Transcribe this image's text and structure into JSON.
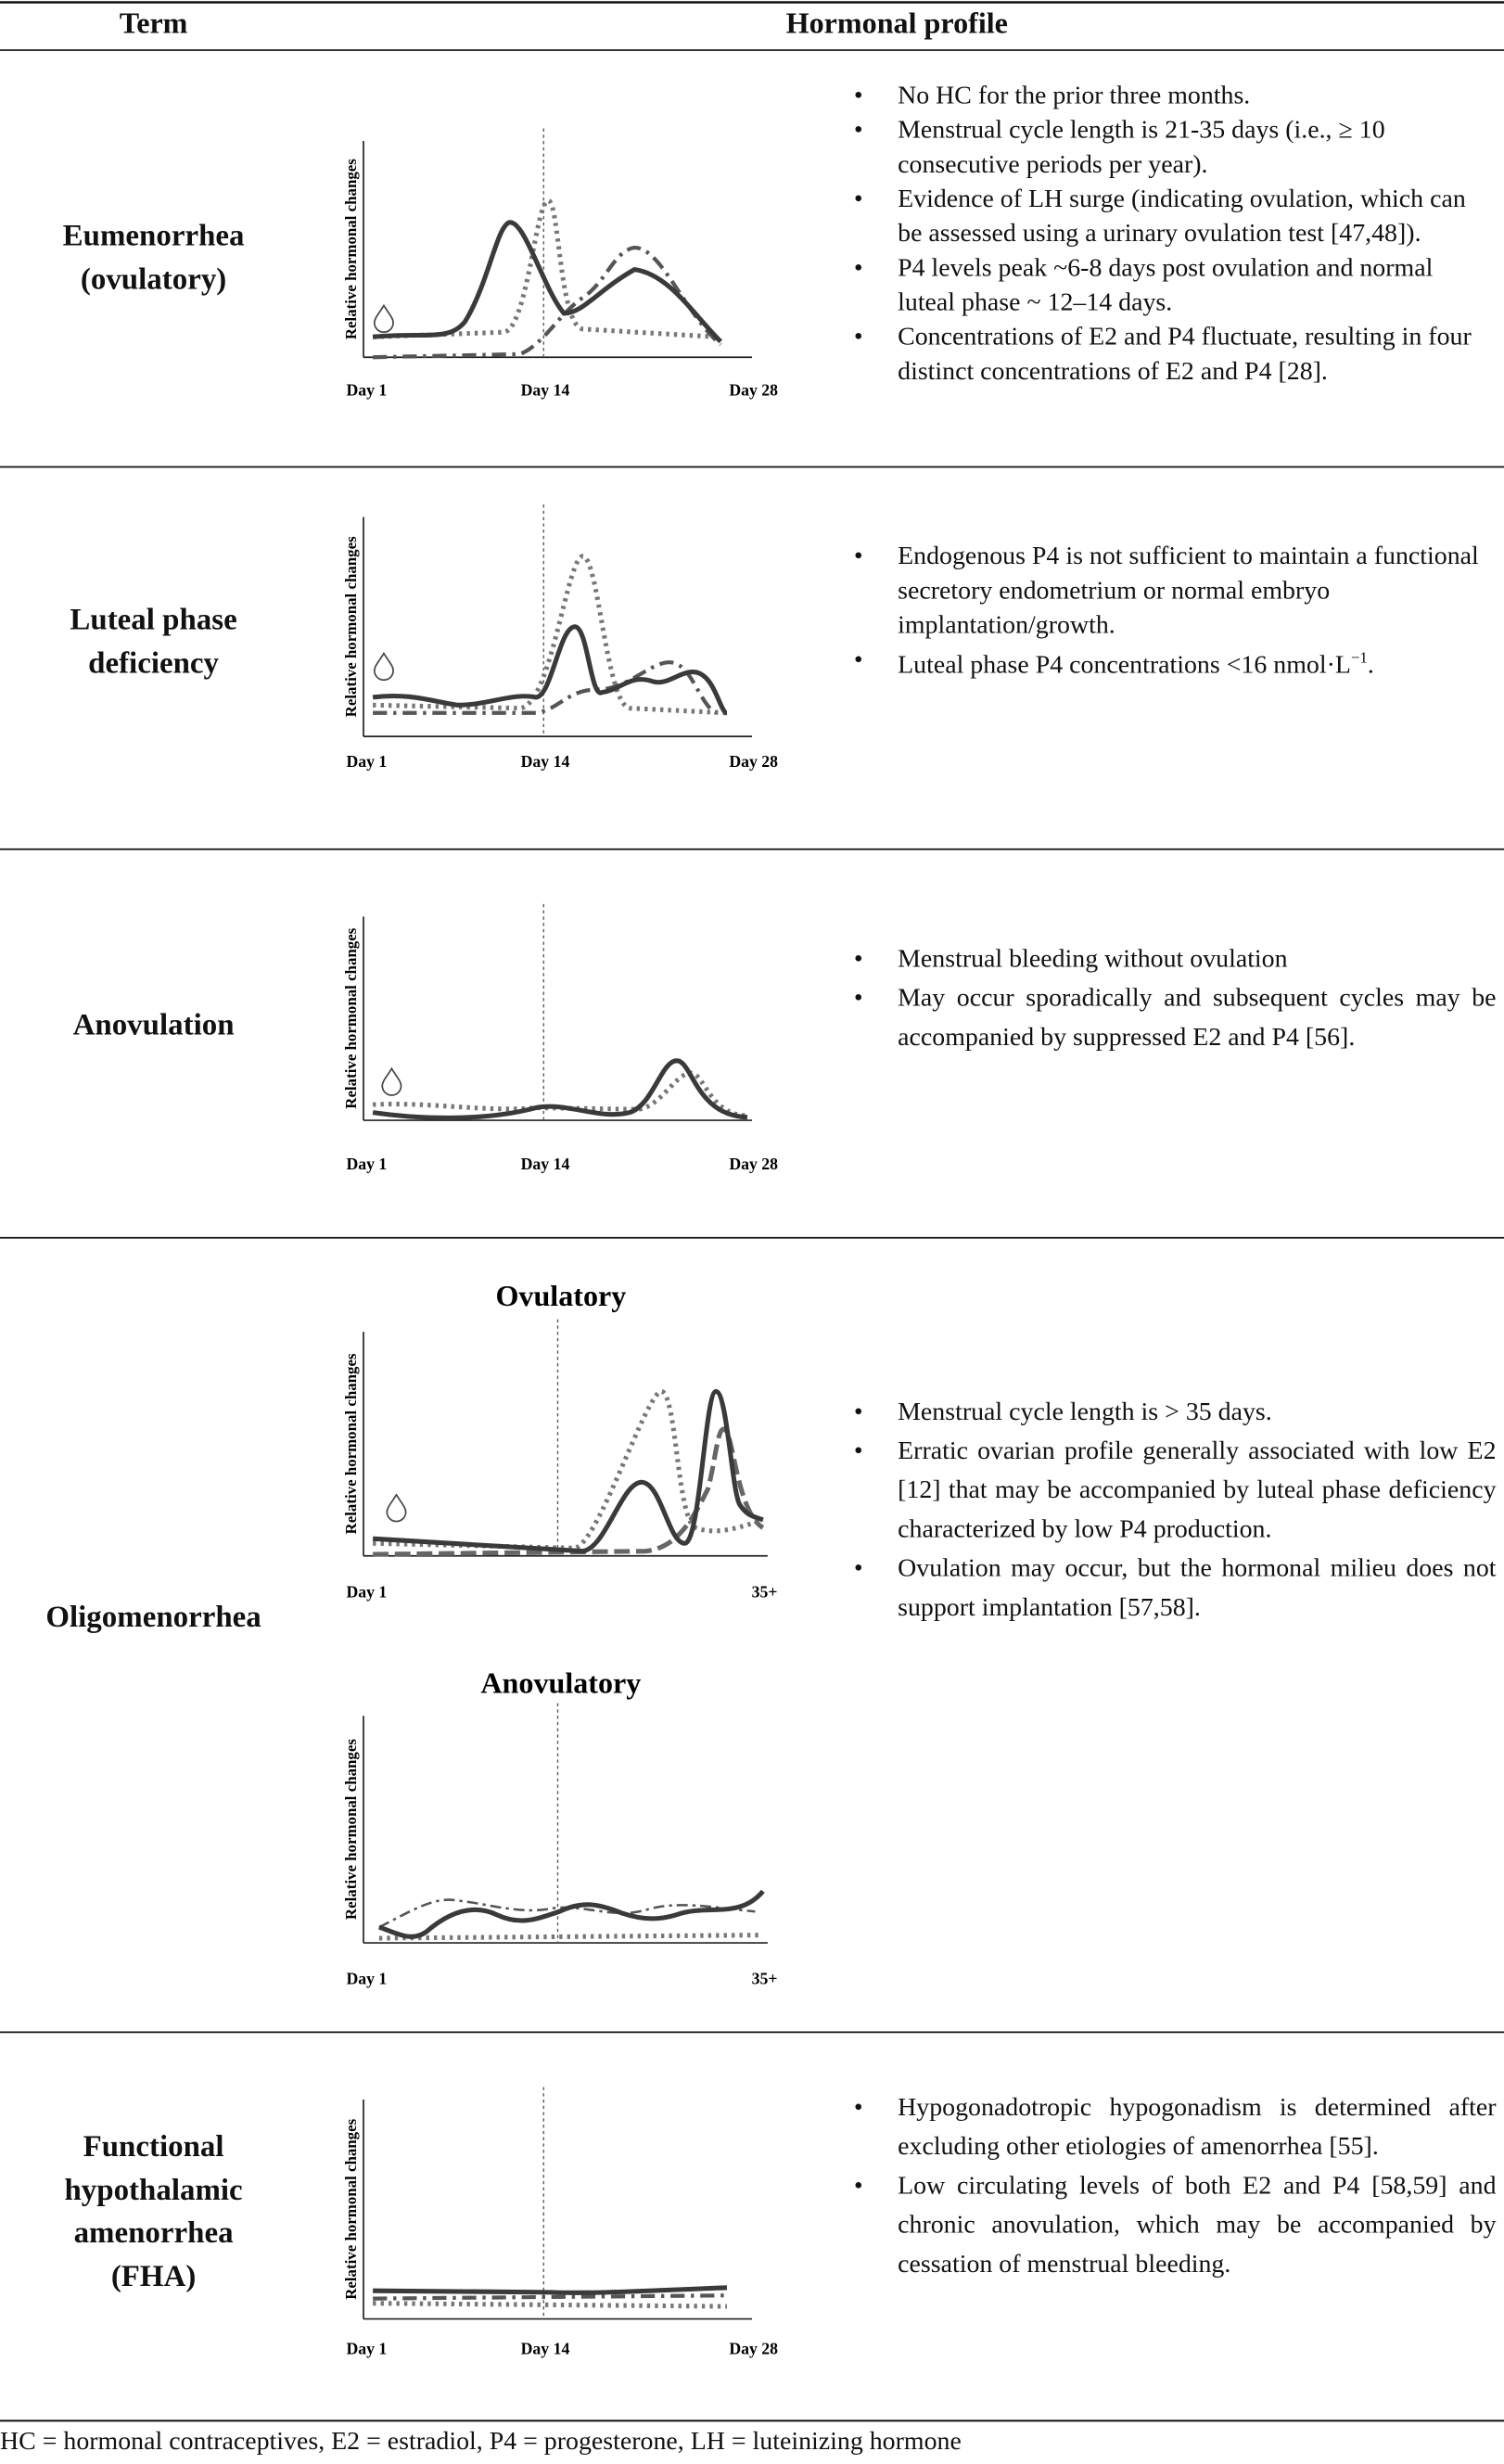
{
  "table": {
    "header": [
      "Term",
      "Hormonal profile"
    ],
    "rows": [
      {
        "term": [
          "Eumenorrhea",
          "(ovulatory)"
        ],
        "panels": [
          {
            "y_label": "Relative hormonal changes",
            "x_ticks": [
              "Day 1",
              "Day 14",
              "Day 28"
            ]
          }
        ],
        "bullets": [
          "No HC for the prior three months.",
          "Menstrual cycle length is 21-35 days (i.e., ≥ 10 consecutive periods per year).",
          "Evidence of LH surge (indicating ovulation, which can be assessed using a urinary ovulation test [47,48]).",
          "P4 levels peak ~6-8 days post ovulation and normal luteal phase ~ 12–14 days.",
          "Concentrations of E2 and P4 fluctuate, resulting in four distinct concentrations of E2 and P4 [28]."
        ]
      },
      {
        "term": [
          "Luteal phase",
          "deficiency"
        ],
        "panels": [
          {
            "y_label": "Relative hormonal changes",
            "x_ticks": [
              "Day 1",
              "Day 14",
              "Day 28"
            ]
          }
        ],
        "bullets": [
          "Endogenous P4 is not sufficient to maintain a functional secretory endometrium or normal embryo implantation/growth.",
          {
            "text": "Luteal phase P4 concentrations <16 nmol·L",
            "sup": "−1",
            "end": "."
          }
        ]
      },
      {
        "term": [
          "Anovulation"
        ],
        "panels": [
          {
            "y_label": "Relative hormonal changes",
            "x_ticks": [
              "Day 1",
              "Day 14",
              "Day 28"
            ]
          }
        ],
        "bullets": [
          "Menstrual bleeding without ovulation",
          "May occur sporadically and subsequent cycles may be accompanied by suppressed E2 and P4 [56]."
        ]
      },
      {
        "term": [
          "Oligomenorrhea"
        ],
        "panels": [
          {
            "title": "Ovulatory",
            "y_label": "Relative hormonal changes",
            "x_ticks": [
              "Day 1",
              "35+"
            ]
          },
          {
            "title": "Anovulatory",
            "y_label": "Relative hormonal changes",
            "x_ticks": [
              "Day 1",
              "35+"
            ]
          }
        ],
        "bullets": [
          "Menstrual cycle length is > 35 days.",
          "Erratic ovarian profile generally associated with low E2 [12] that may be accompanied by luteal phase deficiency characterized by low P4 production.",
          "Ovulation may occur, but the hormonal milieu does not support implantation [57,58]."
        ]
      },
      {
        "term": [
          "Functional",
          "hypothalamic",
          "amenorrhea",
          "(FHA)"
        ],
        "panels": [
          {
            "y_label": "Relative hormonal changes",
            "x_ticks": [
              "Day 1",
              "Day 14",
              "Day 28"
            ]
          }
        ],
        "bullets": [
          "Hypogonadotropic hypogonadism is determined after excluding other etiologies of amenorrhea [55].",
          "Low circulating levels of both E2 and P4 [58,59] and chronic anovulation, which may be accompanied by cessation of menstrual bleeding."
        ]
      }
    ]
  },
  "footnote": "HC = hormonal contraceptives, E2 = estradiol, P4 = progesterone, LH = luteinizing hormone"
}
